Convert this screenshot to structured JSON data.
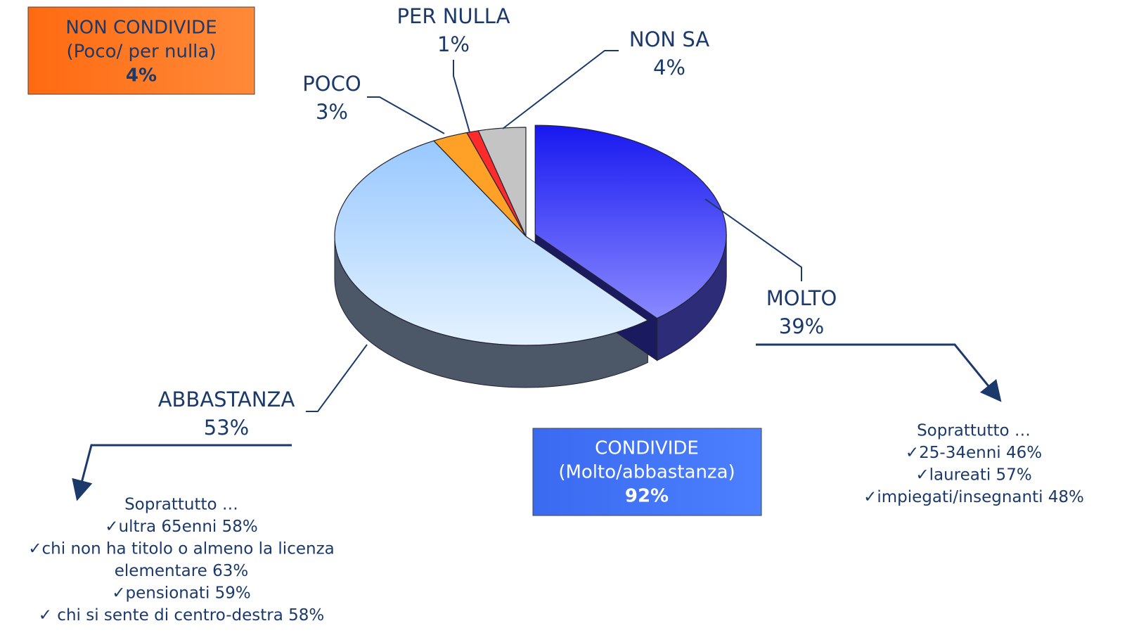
{
  "chart_data": {
    "type": "pie",
    "categories": [
      "MOLTO",
      "ABBASTANZA",
      "POCO",
      "PER NULLA",
      "NON SA"
    ],
    "values": [
      39,
      53,
      3,
      1,
      4
    ],
    "value_labels": [
      "39%",
      "53%",
      "3%",
      "1%",
      "4%"
    ],
    "colors": [
      "#4a4aff",
      "#b4d8ff",
      "#ffa126",
      "#ff2a2a",
      "#c4c4c4"
    ],
    "annotations": [
      {
        "lines": [
          "NON CONDIVIDE",
          "(Poco/ per nulla)",
          "4%"
        ]
      },
      {
        "lines": [
          "CONDIVIDE",
          "(Molto/abbastanza)",
          "92%"
        ]
      }
    ],
    "notes": [
      {
        "lines": [
          "Soprattutto …",
          "✓ultra 65enni 58%",
          "✓chi non ha titolo o almeno la licenza",
          "elementare 63%",
          "✓pensionati 59%",
          "✓ chi si sente di centro-destra 58%"
        ]
      },
      {
        "lines": [
          "Soprattutto …",
          "✓25-34enni 46%",
          "✓laureati 57%",
          "✓impiegati/insegnanti 48%"
        ]
      }
    ]
  }
}
